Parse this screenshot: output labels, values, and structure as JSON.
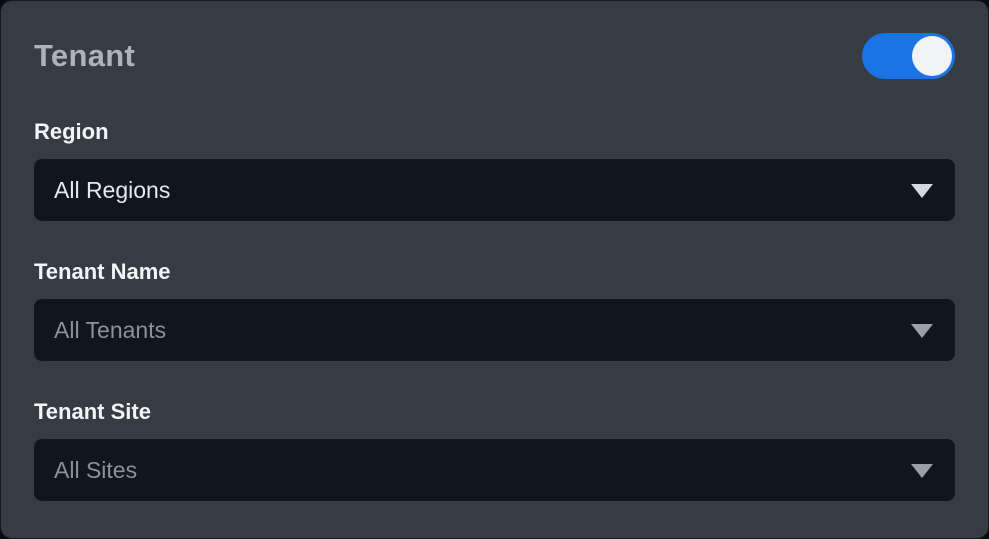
{
  "panel": {
    "title": "Tenant"
  },
  "toggle": {
    "name": "tenant-filter-toggle",
    "state": "on"
  },
  "fields": [
    {
      "label": "Region",
      "value": "All Regions",
      "state": "active"
    },
    {
      "label": "Tenant Name",
      "value": "All Tenants",
      "state": "muted"
    },
    {
      "label": "Tenant Site",
      "value": "All Sites",
      "state": "muted"
    }
  ],
  "colors": {
    "page-bg": "#0a0b0d",
    "panel-bg": "#373b43",
    "panel-border": "#17191d",
    "title-color": "#adb3be",
    "label-color": "#f3f5f7",
    "field-bg": "#11151e",
    "value-bright": "#e6e8eb",
    "value-muted": "#8b9099",
    "caret-bright": "#d5d8dd",
    "caret-muted": "#9aa0a9",
    "accent": "#1b74e4",
    "knob-color": "#f2f3f5"
  }
}
